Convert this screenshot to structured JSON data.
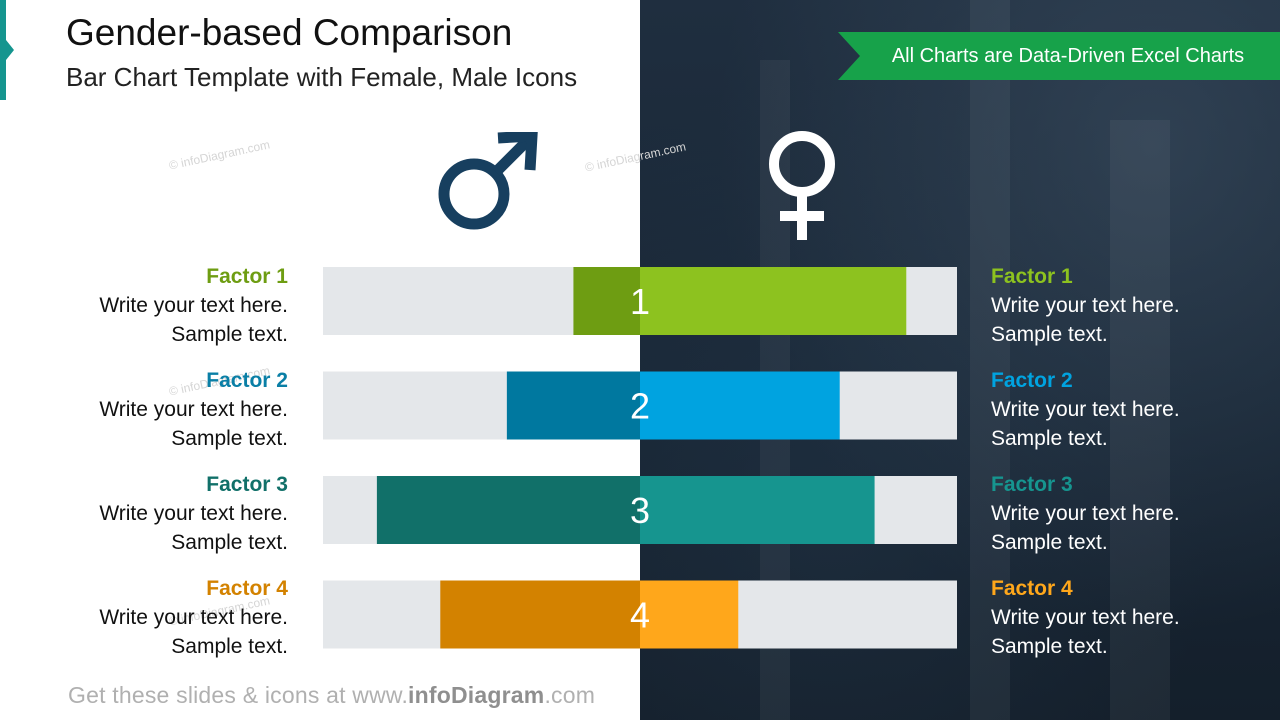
{
  "header": {
    "title": "Gender-based Comparison",
    "subtitle": "Bar Chart Template with Female, Male Icons",
    "ribbon": "All Charts are Data-Driven Excel Charts"
  },
  "watermark": "© infoDiagram.com",
  "footer": {
    "prefix": "Get these slides & icons at www.",
    "brand": "infoDiagram",
    "suffix": ".com"
  },
  "icons": {
    "male": "male-symbol-icon",
    "female": "female-symbol-icon"
  },
  "colors": {
    "track": "#e4e7ea",
    "male_icon": "#173f5f",
    "female_icon": "#ffffff",
    "ribbon": "#17a24a",
    "dark_panel": "#1c2a3a"
  },
  "factors": [
    {
      "name": "Factor 1",
      "line1": "Write your text here.",
      "line2": "Sample text.",
      "color": "#8dc21f",
      "dark": "#6e9d12",
      "text_color": "#6e9d12"
    },
    {
      "name": "Factor 2",
      "line1": "Write your text here.",
      "line2": "Sample text.",
      "color": "#00a3e0",
      "dark": "#00789f",
      "text_color": "#0a7fa6"
    },
    {
      "name": "Factor 3",
      "line1": "Write your text here.",
      "line2": "Sample text.",
      "color": "#16958f",
      "dark": "#117069",
      "text_color": "#117069"
    },
    {
      "name": "Factor 4",
      "line1": "Write your text here.",
      "line2": "Sample text.",
      "color": "#ffa71b",
      "dark": "#d38200",
      "text_color": "#d38200"
    }
  ],
  "chart_data": {
    "type": "bar",
    "orientation": "horizontal-diverging",
    "categories": [
      "1",
      "2",
      "3",
      "4"
    ],
    "max": 100,
    "series": [
      {
        "values": [
          21,
          42,
          83,
          63
        ]
      },
      {
        "values": [
          84,
          63,
          74,
          31
        ]
      }
    ]
  }
}
